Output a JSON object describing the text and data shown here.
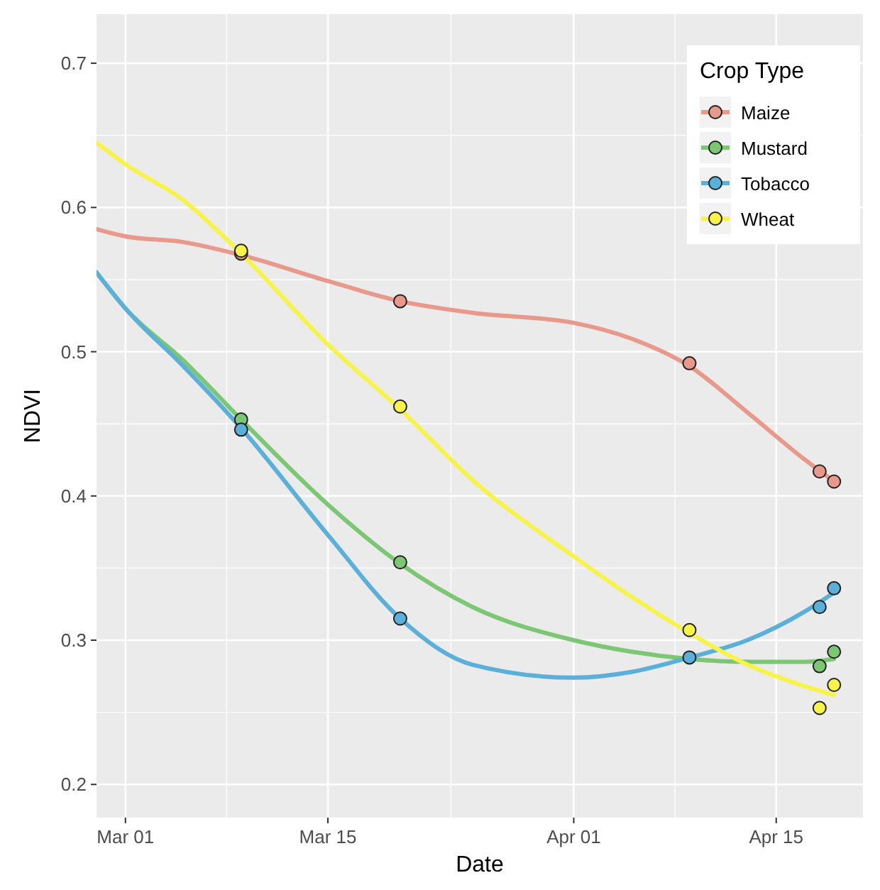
{
  "chart_data": {
    "type": "line",
    "xlabel": "Date",
    "ylabel": "NDVI",
    "legend_title": "Crop Type",
    "legend": "top right",
    "grid": true,
    "line_style": "solid",
    "xlim": [
      "--02-27",
      "--04-21"
    ],
    "xticks": [
      {
        "value": "--03-01",
        "label": "Mar 01"
      },
      {
        "value": "--03-15",
        "label": "Mar 15"
      },
      {
        "value": "--04-01",
        "label": "Apr 01"
      },
      {
        "value": "--04-15",
        "label": "Apr 15"
      }
    ],
    "ylim": [
      0.177,
      0.734
    ],
    "yticks": [
      {
        "value": 0.2,
        "label": "0.2"
      },
      {
        "value": 0.3,
        "label": "0.3"
      },
      {
        "value": 0.4,
        "label": "0.4"
      },
      {
        "value": 0.5,
        "label": "0.5"
      },
      {
        "value": 0.6,
        "label": "0.6"
      },
      {
        "value": 0.7,
        "label": "0.7"
      }
    ],
    "series": [
      {
        "name": "Maize",
        "color": "#e8998a",
        "x": [
          "--02-27",
          "--03-01",
          "--03-05",
          "--03-09",
          "--03-15",
          "--03-20",
          "--03-25",
          "--04-01",
          "--04-05",
          "--04-09",
          "--04-13",
          "--04-17",
          "--04-19"
        ],
        "values": [
          0.585,
          0.58,
          0.576,
          0.567,
          0.549,
          0.535,
          0.527,
          0.52,
          0.509,
          0.49,
          0.458,
          0.425,
          0.41
        ]
      },
      {
        "name": "Mustard",
        "color": "#7cc774",
        "x": [
          "--02-27",
          "--03-01",
          "--03-05",
          "--03-09",
          "--03-15",
          "--03-20",
          "--03-25",
          "--04-01",
          "--04-05",
          "--04-09",
          "--04-13",
          "--04-17",
          "--04-19"
        ],
        "values": [
          0.555,
          0.53,
          0.494,
          0.453,
          0.394,
          0.353,
          0.323,
          0.3,
          0.292,
          0.287,
          0.285,
          0.285,
          0.287
        ]
      },
      {
        "name": "Tobacco",
        "color": "#5ab0d8",
        "x": [
          "--02-27",
          "--03-01",
          "--03-05",
          "--03-09",
          "--03-15",
          "--03-20",
          "--03-25",
          "--04-01",
          "--04-05",
          "--04-09",
          "--04-13",
          "--04-17",
          "--04-19"
        ],
        "values": [
          0.555,
          0.53,
          0.49,
          0.447,
          0.373,
          0.315,
          0.283,
          0.274,
          0.278,
          0.288,
          0.3,
          0.32,
          0.333
        ]
      },
      {
        "name": "Wheat",
        "color": "#f7f447",
        "x": [
          "--02-27",
          "--03-01",
          "--03-05",
          "--03-09",
          "--03-15",
          "--03-20",
          "--03-25",
          "--04-01",
          "--04-05",
          "--04-09",
          "--04-13",
          "--04-17",
          "--04-19"
        ],
        "values": [
          0.645,
          0.63,
          0.605,
          0.568,
          0.505,
          0.46,
          0.411,
          0.358,
          0.33,
          0.305,
          0.283,
          0.268,
          0.262
        ]
      },
      {
        "type": "scatter",
        "marker": "circle",
        "color": "#e8998a",
        "x": [
          "--03-09",
          "--03-20",
          "--04-09",
          "--04-18",
          "--04-19"
        ],
        "values": [
          0.568,
          0.535,
          0.492,
          0.417,
          0.41
        ]
      },
      {
        "type": "scatter",
        "marker": "circle",
        "color": "#7cc774",
        "x": [
          "--03-09",
          "--03-20",
          "--04-18",
          "--04-19"
        ],
        "values": [
          0.453,
          0.354,
          0.282,
          0.292
        ]
      },
      {
        "type": "scatter",
        "marker": "circle",
        "color": "#5ab0d8",
        "x": [
          "--03-09",
          "--03-20",
          "--04-09",
          "--04-18",
          "--04-19"
        ],
        "values": [
          0.446,
          0.315,
          0.288,
          0.323,
          0.336
        ]
      },
      {
        "type": "scatter",
        "marker": "circle",
        "color": "#f7f447",
        "x": [
          "--03-09",
          "--03-20",
          "--04-09",
          "--04-18",
          "--04-19"
        ],
        "values": [
          0.57,
          0.462,
          0.307,
          0.253,
          0.269
        ]
      }
    ]
  }
}
